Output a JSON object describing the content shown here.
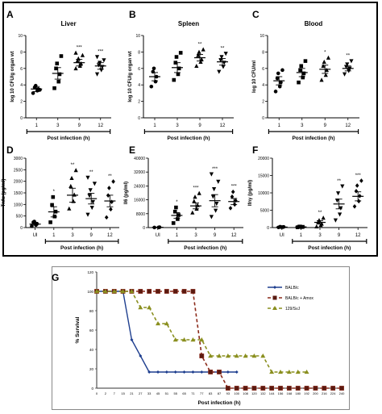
{
  "colors": {
    "frame": "#000000",
    "data": "#000000",
    "surv_balbc": "#1f3f8f",
    "surv_amox": "#8b2a1a",
    "surv_129": "#8a8f1f"
  },
  "panels": [
    {
      "letter": "A",
      "title": "Liver",
      "ylabel": "log 10 CFU/g organ wt",
      "xtitle": "Post infection (h)",
      "ylim": [
        0,
        10
      ],
      "ytick_labels": [
        "0",
        "2",
        "4",
        "6",
        "8",
        "10"
      ],
      "categories": [
        "1",
        "3",
        "9",
        "12"
      ],
      "signif": [
        "",
        "",
        "***",
        "***"
      ],
      "means": [
        3.5,
        5.4,
        6.7,
        6.3
      ],
      "sem": [
        0.3,
        0.7,
        0.4,
        0.4
      ],
      "points": [
        [
          3.0,
          3.3,
          3.5,
          3.7,
          3.9,
          3.4
        ],
        [
          3.6,
          4.4,
          5.3,
          6.0,
          6.6,
          7.5
        ],
        [
          6.0,
          6.3,
          6.6,
          6.9,
          7.2,
          7.6,
          7.9
        ],
        [
          5.3,
          5.8,
          6.2,
          6.4,
          6.7,
          7.0,
          7.4
        ]
      ]
    },
    {
      "letter": "B",
      "title": "Spleen",
      "ylabel": "log 10 CFU/g organ wt",
      "xtitle": "Post infection (h)",
      "ylim": [
        0,
        10
      ],
      "ytick_labels": [
        "0",
        "2",
        "4",
        "6",
        "8",
        "10"
      ],
      "categories": [
        "1",
        "3",
        "9",
        "12"
      ],
      "signif": [
        "",
        "",
        "**",
        "**"
      ],
      "means": [
        5.0,
        6.1,
        7.3,
        6.8
      ],
      "sem": [
        0.5,
        0.6,
        0.4,
        0.4
      ],
      "points": [
        [
          3.8,
          4.4,
          5.0,
          5.6,
          6.0
        ],
        [
          4.6,
          5.3,
          6.0,
          6.7,
          7.4,
          7.9
        ],
        [
          6.3,
          6.8,
          7.1,
          7.6,
          8.0,
          8.3
        ],
        [
          5.6,
          6.2,
          6.7,
          7.0,
          7.4,
          7.8
        ]
      ]
    },
    {
      "letter": "C",
      "title": "Blood",
      "ylabel": "log 10 CFU/ml",
      "xtitle": "Post infection (h)",
      "ylim": [
        0,
        10
      ],
      "ytick_labels": [
        "0",
        "2",
        "4",
        "6",
        "8",
        "10"
      ],
      "categories": [
        "1",
        "3",
        "9",
        "12"
      ],
      "signif": [
        "",
        "",
        "*",
        "**"
      ],
      "means": [
        4.5,
        5.5,
        5.9,
        6.0
      ],
      "sem": [
        0.5,
        0.5,
        0.5,
        0.3
      ],
      "points": [
        [
          3.2,
          3.8,
          4.3,
          4.8,
          5.4,
          5.8
        ],
        [
          4.3,
          4.9,
          5.4,
          5.8,
          6.3,
          6.9
        ],
        [
          4.6,
          5.2,
          5.8,
          6.3,
          6.8,
          7.3
        ],
        [
          5.3,
          5.7,
          6.0,
          6.2,
          6.5,
          6.9
        ]
      ]
    },
    {
      "letter": "D",
      "title": "",
      "ylabel": "Tnfα (pg/ml)",
      "xtitle": "Post infection (h)",
      "ylim": [
        0,
        3000
      ],
      "ytick_labels": [
        "0",
        "500",
        "1000",
        "1500",
        "2000",
        "2500",
        "3000"
      ],
      "categories": [
        "UI",
        "1",
        "3",
        "9",
        "12"
      ],
      "signif": [
        "",
        "*",
        "**",
        "**",
        "**"
      ],
      "means": [
        150,
        680,
        1400,
        1250,
        1150
      ],
      "sem": [
        40,
        220,
        300,
        230,
        250
      ],
      "points": [
        [
          60,
          110,
          170,
          230,
          260
        ],
        [
          230,
          480,
          690,
          980,
          1320
        ],
        [
          820,
          1140,
          1420,
          1790,
          2140,
          2480
        ],
        [
          560,
          860,
          1110,
          1380,
          1620,
          1900,
          2160
        ],
        [
          440,
          790,
          1110,
          1390,
          1710,
          1990
        ]
      ]
    },
    {
      "letter": "E",
      "title": "",
      "ylabel": "Il6 (pg/ml)",
      "xtitle": "Post infection (h)",
      "ylim": [
        0,
        40000
      ],
      "ytick_labels": [
        "0",
        "8000",
        "16000",
        "24000",
        "32000",
        "40000"
      ],
      "categories": [
        "UI",
        "1",
        "3",
        "9",
        "12"
      ],
      "signif": [
        "",
        "*",
        "***",
        "***",
        "***"
      ],
      "means": [
        150,
        7000,
        12500,
        15500,
        15000
      ],
      "sem": [
        60,
        1600,
        1700,
        3500,
        1800
      ],
      "points": [
        [
          60,
          120,
          220
        ],
        [
          2600,
          4900,
          7200,
          9200,
          11600
        ],
        [
          8600,
          10800,
          12900,
          15200,
          17700,
          19800
        ],
        [
          6200,
          9800,
          13800,
          17900,
          22200,
          26500,
          30800
        ],
        [
          11200,
          13300,
          15600,
          17800,
          20600
        ]
      ]
    },
    {
      "letter": "F",
      "title": "",
      "ylabel": "Ifnγ (pg/ml)",
      "xtitle": "Post infection (h)",
      "ylim": [
        0,
        20000
      ],
      "ytick_labels": [
        "0",
        "5000",
        "10000",
        "15000",
        "20000"
      ],
      "categories": [
        "UI",
        "1",
        "3",
        "9",
        "12"
      ],
      "signif": [
        "",
        "",
        "**",
        "**",
        "***"
      ],
      "means": [
        150,
        200,
        1500,
        6800,
        9000
      ],
      "sem": [
        50,
        60,
        500,
        1400,
        1300
      ],
      "points": [
        [
          60,
          120,
          190,
          250,
          140
        ],
        [
          80,
          150,
          210,
          260,
          300
        ],
        [
          300,
          700,
          1100,
          1600,
          2100,
          2800
        ],
        [
          2100,
          3800,
          5600,
          7800,
          9900,
          11900
        ],
        [
          6100,
          7600,
          9100,
          10500,
          12100,
          13500
        ]
      ]
    }
  ],
  "survival": {
    "letter": "G",
    "ylabel": "% Survival",
    "xlabel": "Post infection (h)",
    "ylim": [
      0,
      120
    ],
    "ytick_labels": [
      "0",
      "20",
      "40",
      "60",
      "80",
      "100",
      "120"
    ],
    "x_labels": [
      "0",
      "2",
      "7",
      "15",
      "21",
      "27",
      "33",
      "45",
      "51",
      "55",
      "65",
      "71",
      "77",
      "83",
      "87",
      "93",
      "100",
      "108",
      "120",
      "132",
      "144",
      "156",
      "168",
      "180",
      "192",
      "200",
      "216",
      "224",
      "240"
    ],
    "series": [
      {
        "name": "BALB/c",
        "values": [
          100,
          100,
          100,
          100,
          50,
          33.3,
          16.7,
          16.7,
          16.7,
          16.7,
          16.7,
          16.7,
          16.7,
          16.7,
          16.7,
          16.7,
          16.7
        ]
      },
      {
        "name": "BALB/c + Amox",
        "values": [
          100,
          100,
          100,
          100,
          100,
          100,
          100,
          100,
          100,
          100,
          100,
          100,
          33.3,
          16.7,
          16.7,
          0,
          0,
          0,
          0,
          0,
          0,
          0,
          0,
          0,
          0,
          0,
          0,
          0,
          0
        ]
      },
      {
        "name": "129/SvJ",
        "values": [
          100,
          100,
          100,
          100,
          100,
          83.3,
          83.3,
          66.7,
          66.7,
          50,
          50,
          50,
          50,
          33.3,
          33.3,
          33.3,
          33.3,
          33.3,
          33.3,
          33.3,
          16.7,
          16.7,
          16.7,
          16.7,
          16.7
        ]
      }
    ]
  }
}
